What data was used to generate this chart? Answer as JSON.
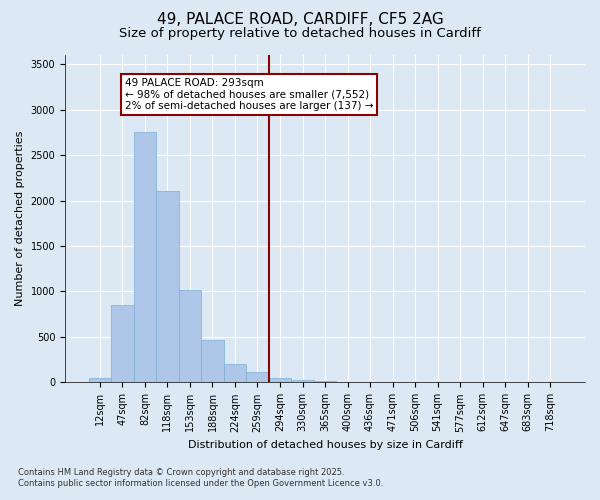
{
  "title1": "49, PALACE ROAD, CARDIFF, CF5 2AG",
  "title2": "Size of property relative to detached houses in Cardiff",
  "xlabel": "Distribution of detached houses by size in Cardiff",
  "ylabel": "Number of detached properties",
  "categories": [
    "12sqm",
    "47sqm",
    "82sqm",
    "118sqm",
    "153sqm",
    "188sqm",
    "224sqm",
    "259sqm",
    "294sqm",
    "330sqm",
    "365sqm",
    "400sqm",
    "436sqm",
    "471sqm",
    "506sqm",
    "541sqm",
    "577sqm",
    "612sqm",
    "647sqm",
    "683sqm",
    "718sqm"
  ],
  "values": [
    50,
    850,
    2750,
    2100,
    1020,
    470,
    200,
    115,
    50,
    30,
    15,
    10,
    5,
    3,
    2,
    2,
    2,
    1,
    1,
    1,
    1
  ],
  "bar_color": "#aec6e8",
  "bar_edge_color": "#7aafd4",
  "vline_color": "#8b0000",
  "vline_x_index": 8,
  "annotation_text": "49 PALACE ROAD: 293sqm\n← 98% of detached houses are smaller (7,552)\n2% of semi-detached houses are larger (137) →",
  "annotation_box_edgecolor": "#8b0000",
  "annotation_bg": "#ffffff",
  "ylim_max": 3600,
  "background_color": "#dce9f5",
  "grid_color": "#ffffff",
  "footer1": "Contains HM Land Registry data © Crown copyright and database right 2025.",
  "footer2": "Contains public sector information licensed under the Open Government Licence v3.0.",
  "title_fontsize": 11,
  "subtitle_fontsize": 9.5,
  "axis_label_fontsize": 8,
  "tick_fontsize": 7,
  "annotation_fontsize": 7.5,
  "footer_fontsize": 6
}
